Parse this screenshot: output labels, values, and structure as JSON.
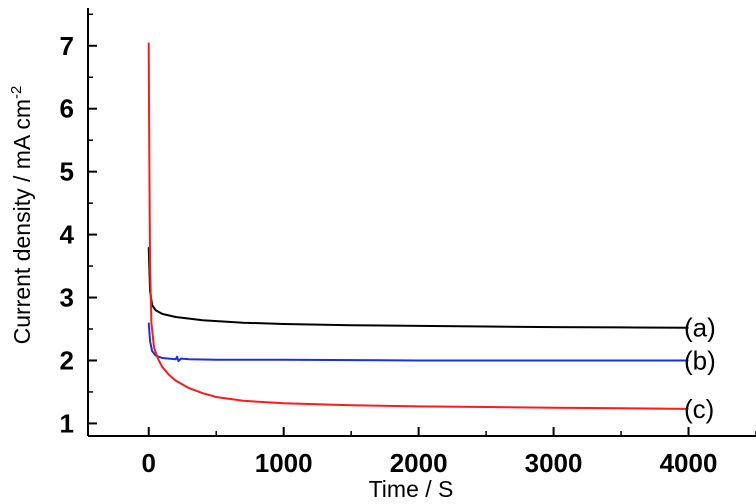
{
  "chart_data": {
    "type": "line",
    "xlabel": "Time / S",
    "ylabel_main": "Current density / mA cm",
    "ylabel_sup": "-2",
    "xlim": [
      -450,
      4500
    ],
    "ylim": [
      0.8,
      7.6
    ],
    "x_ticks": [
      0,
      1000,
      2000,
      3000,
      4000
    ],
    "x_tick_labels": [
      "0",
      "1000",
      "2000",
      "3000",
      "4000"
    ],
    "y_ticks": [
      1,
      2,
      3,
      4,
      5,
      6,
      7
    ],
    "y_tick_labels": [
      "1",
      "2",
      "3",
      "4",
      "5",
      "6",
      "7"
    ],
    "grid": false,
    "series": [
      {
        "name": "(a)",
        "color": "#000000",
        "x": [
          0,
          10,
          25,
          50,
          100,
          200,
          400,
          700,
          1000,
          1500,
          2000,
          2500,
          3000,
          3500,
          4000
        ],
        "y": [
          3.8,
          3.1,
          2.88,
          2.8,
          2.74,
          2.69,
          2.64,
          2.6,
          2.58,
          2.56,
          2.55,
          2.54,
          2.53,
          2.525,
          2.52
        ]
      },
      {
        "name": "(b)",
        "color": "#1f2fe0",
        "x": [
          0,
          10,
          25,
          50,
          100,
          150,
          200,
          210,
          220,
          240,
          300,
          500,
          1000,
          2000,
          3000,
          4000
        ],
        "y": [
          2.6,
          2.3,
          2.15,
          2.08,
          2.04,
          2.03,
          2.02,
          2.06,
          1.99,
          2.03,
          2.02,
          2.01,
          2.01,
          2.0,
          2.0,
          2.0
        ]
      },
      {
        "name": "(c)",
        "color": "#ff1a1a",
        "x": [
          0,
          5,
          10,
          20,
          40,
          70,
          100,
          150,
          200,
          300,
          400,
          500,
          700,
          1000,
          1500,
          2000,
          2500,
          3000,
          3500,
          4000
        ],
        "y": [
          7.05,
          5.0,
          3.5,
          2.6,
          2.2,
          2.02,
          1.9,
          1.77,
          1.68,
          1.56,
          1.48,
          1.42,
          1.36,
          1.32,
          1.29,
          1.27,
          1.26,
          1.25,
          1.24,
          1.23
        ]
      }
    ]
  }
}
